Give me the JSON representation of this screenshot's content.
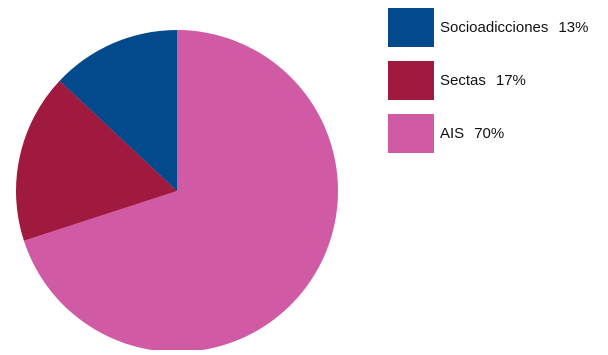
{
  "chart_data": {
    "type": "pie",
    "title": "",
    "categories": [
      "Socioadicciones",
      "Sectas",
      "AIS"
    ],
    "values": [
      13,
      17,
      70
    ],
    "labels": [
      "13%",
      "17%",
      "70%"
    ],
    "colors": [
      "#034a8c",
      "#a01a40",
      "#d05aa3"
    ],
    "legend_position": "right"
  }
}
